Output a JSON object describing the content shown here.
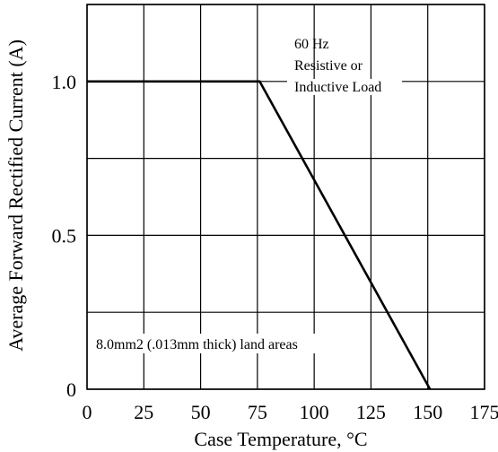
{
  "chart_data": {
    "type": "line",
    "title": "",
    "xlabel": "Case Temperature, °C",
    "ylabel": "Average Forward Rectified Current (A)",
    "xlim": [
      0,
      175
    ],
    "ylim": [
      0,
      1.25
    ],
    "grid": true,
    "x_ticks": [
      0,
      25,
      50,
      75,
      100,
      125,
      150,
      175
    ],
    "x_tick_labels": [
      "0",
      "25",
      "50",
      "75",
      "100",
      "125",
      "150",
      "175"
    ],
    "y_ticks": [
      0,
      0.5,
      1.0
    ],
    "y_tick_labels": [
      "0",
      "0.5",
      "1.0"
    ],
    "series": [
      {
        "x": [
          0,
          76,
          151
        ],
        "y": [
          1.0,
          1.0,
          0
        ]
      }
    ],
    "annotations": {
      "freq": "60 Hz",
      "load_line1": "Resistive or",
      "load_line2": "Inductive Load",
      "land_area": "8.0mm2 (.013mm thick) land areas"
    }
  }
}
